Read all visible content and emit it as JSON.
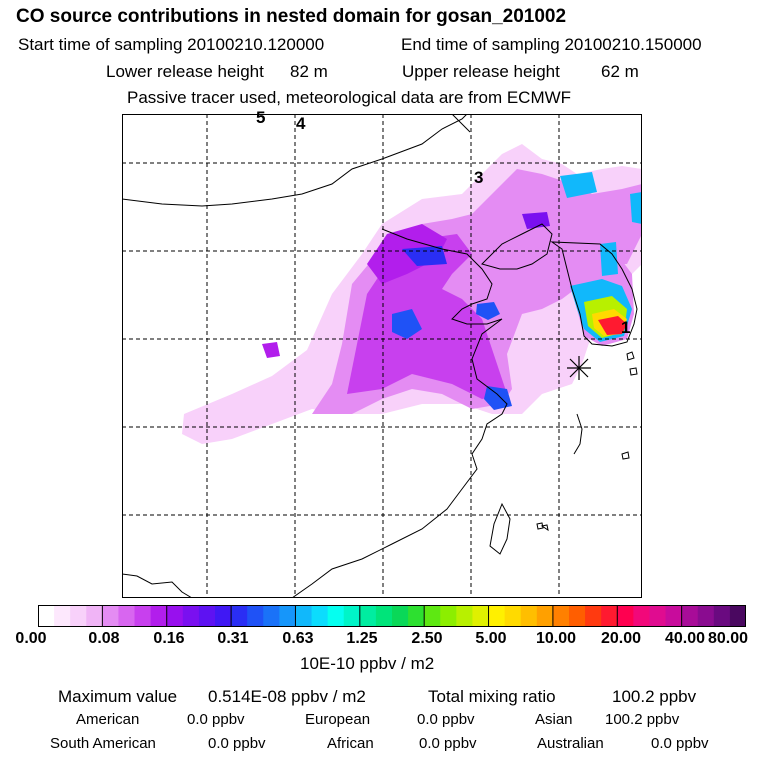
{
  "title": "CO  source contributions in nested domain for gosan_201002",
  "header": {
    "start_label": "Start time of sampling 20100210.120000",
    "end_label": "End time of sampling 20100210.150000",
    "lower_label": "Lower release height",
    "lower_value": "82 m",
    "upper_label": "Upper release height",
    "upper_value": "62 m",
    "note": "Passive tracer used, meteorological data are from ECMWF"
  },
  "map": {
    "receptor_name": "gosan",
    "region_labels": [
      "1",
      "3",
      "4",
      "5"
    ]
  },
  "colorbar": {
    "ticks": [
      "0.00",
      "0.08",
      "0.16",
      "0.31",
      "0.63",
      "1.25",
      "2.50",
      "5.00",
      "10.00",
      "20.00",
      "40.00",
      "80.00"
    ],
    "colors": [
      "#ffffff",
      "#fde8fd",
      "#f8d1fa",
      "#f0b4f6",
      "#e48cf3",
      "#d866f0",
      "#c840ee",
      "#b21eec",
      "#9810ee",
      "#7a10f0",
      "#5e12f2",
      "#4018f4",
      "#2a2ef4",
      "#1f52f6",
      "#1a72f8",
      "#1696fa",
      "#11b8fb",
      "#0cdcfd",
      "#05fff0",
      "#00f5c8",
      "#00eda0",
      "#00e47a",
      "#0ad858",
      "#2de030",
      "#5ee812",
      "#8cee00",
      "#b8f000",
      "#e0f000",
      "#fff000",
      "#ffda00",
      "#ffbe00",
      "#ffa000",
      "#ff8000",
      "#ff5e00",
      "#ff3a10",
      "#ff1a30",
      "#ff0050",
      "#f2087a",
      "#e00c90",
      "#c80c9c",
      "#a80c98",
      "#8a0c90",
      "#6a0a80",
      "#4a0860"
    ],
    "unit": "10E-10 ppbv / m2"
  },
  "summary": {
    "max_label": "Maximum value",
    "max_value": "0.514E-08 ppbv / m2",
    "total_label": "Total mixing ratio",
    "total_value": "100.2 ppbv",
    "regions": [
      {
        "label": "American",
        "value": "0.0 ppbv"
      },
      {
        "label": "European",
        "value": "0.0 ppbv"
      },
      {
        "label": "Asian",
        "value": "100.2 ppbv"
      },
      {
        "label": "South American",
        "value": "0.0 ppbv"
      },
      {
        "label": "African",
        "value": "0.0 ppbv"
      },
      {
        "label": "Australian",
        "value": "0.0 ppbv"
      }
    ]
  }
}
